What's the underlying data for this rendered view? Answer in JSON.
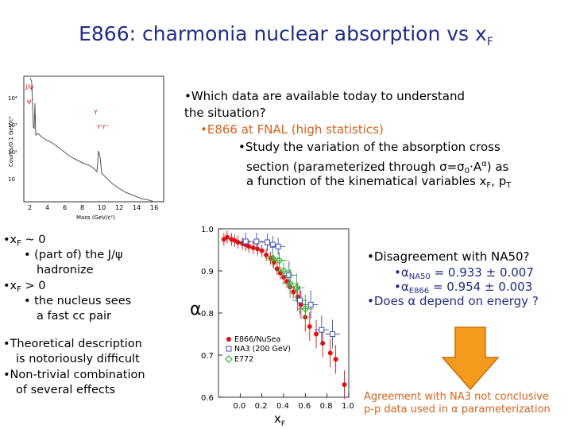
{
  "title": {
    "main": "E866: charmonia nuclear absorption vs x",
    "sub": "F"
  },
  "bullets_top": {
    "l1": "•Which data are available today to understand",
    "l2": "the situation?",
    "l3": "•E866 at FNAL (high statistics)",
    "l4": "•Study the variation of the absorption cross",
    "l5a": "section (parameterized through ",
    "l5b": "σ=σ",
    "l5c": "0",
    "l5d": "·A",
    "l5e": "α",
    "l5f": ") as",
    "l6a": "a function of the kinematical variables x",
    "l6b": "F",
    "l6c": ", p",
    "l6d": "T"
  },
  "bullets_left": {
    "b1a": "•x",
    "b1b": "F",
    "b1c": " ~ 0",
    "b2": "• (part of) the J/ψ",
    "b3": "hadronize",
    "b4a": "•x",
    "b4b": "F",
    "b4c": " > 0",
    "b5": "• the nucleus sees",
    "b6": "a fast cc pair",
    "c1": "•Theoretical description",
    "c2": "is notoriously difficult",
    "c3": "•Non-trivial combination",
    "c4": "of several effects"
  },
  "bullets_right": {
    "r1": "•Disagreement with NA50?",
    "r2a": "•α",
    "r2b": "NA50",
    "r2c": " = 0.933 ± 0.007",
    "r3a": "•α",
    "r3b": "E866",
    "r3c": " = 0.954 ± 0.003",
    "r4": "•Does α depend on energy ?"
  },
  "bottom_note": {
    "l1": "Agreement with NA3 not conclusive",
    "l2": "p-p data used in α parameterization"
  },
  "spectrum": {
    "peaks": {
      "jpsi": "J/ψ",
      "psi_prime": "ψ'",
      "upsilon": "Υ",
      "upsilon_p": "Υ'Υ''"
    },
    "ylabel": "Counts/0.1 GeV/c²",
    "xlabel": "Mass (GeV/c²)",
    "xticks": [
      "2",
      "4",
      "6",
      "8",
      "10",
      "12",
      "14",
      "16"
    ],
    "yticks": [
      "10",
      "10²",
      "10³",
      "10⁴"
    ]
  },
  "colors": {
    "title": "#1f2d86",
    "accent": "#d4631a",
    "e866": "#e01010",
    "na3": "#3a4fb0",
    "e772": "#30b030",
    "arrow": "#f49b1e"
  },
  "chart_data": {
    "type": "scatter",
    "ylabel": "α",
    "xlabel": "x",
    "xlabel_sub": "F",
    "xlim": [
      -0.2,
      1.0
    ],
    "ylim": [
      0.6,
      1.0
    ],
    "xticks": [
      "0.0",
      "0.2",
      "0.4",
      "0.6",
      "0.8",
      "1.0"
    ],
    "yticks": [
      "0.6",
      "0.7",
      "0.8",
      "0.9",
      "1.0"
    ],
    "legend": [
      "E866/NuSea",
      "NA3 (200 GeV)",
      "E772"
    ],
    "series": [
      {
        "name": "E866/NuSea",
        "points": [
          [
            -0.15,
            0.975
          ],
          [
            -0.12,
            0.98
          ],
          [
            -0.08,
            0.975
          ],
          [
            -0.05,
            0.972
          ],
          [
            -0.02,
            0.968
          ],
          [
            0.02,
            0.965
          ],
          [
            0.05,
            0.962
          ],
          [
            0.08,
            0.958
          ],
          [
            0.12,
            0.955
          ],
          [
            0.16,
            0.952
          ],
          [
            0.2,
            0.948
          ],
          [
            0.24,
            0.938
          ],
          [
            0.28,
            0.93
          ],
          [
            0.31,
            0.92
          ],
          [
            0.34,
            0.905
          ],
          [
            0.37,
            0.895
          ],
          [
            0.4,
            0.885
          ],
          [
            0.43,
            0.875
          ],
          [
            0.46,
            0.862
          ],
          [
            0.49,
            0.85
          ],
          [
            0.53,
            0.838
          ],
          [
            0.56,
            0.82
          ],
          [
            0.6,
            0.79
          ],
          [
            0.64,
            0.768
          ],
          [
            0.7,
            0.75
          ],
          [
            0.76,
            0.728
          ],
          [
            0.83,
            0.705
          ],
          [
            0.88,
            0.69
          ],
          [
            0.96,
            0.63
          ]
        ]
      },
      {
        "name": "NA3 (200 GeV)",
        "points": [
          [
            0.05,
            0.97
          ],
          [
            0.15,
            0.97
          ],
          [
            0.25,
            0.968
          ],
          [
            0.3,
            0.962
          ],
          [
            0.35,
            0.958
          ],
          [
            0.45,
            0.89
          ],
          [
            0.55,
            0.83
          ],
          [
            0.65,
            0.82
          ],
          [
            0.75,
            0.76
          ],
          [
            0.85,
            0.75
          ]
        ]
      },
      {
        "name": "E772",
        "points": [
          [
            0.3,
            0.93
          ],
          [
            0.36,
            0.925
          ],
          [
            0.4,
            0.9
          ],
          [
            0.46,
            0.87
          ],
          [
            0.52,
            0.86
          ],
          [
            0.6,
            0.81
          ]
        ]
      }
    ]
  }
}
